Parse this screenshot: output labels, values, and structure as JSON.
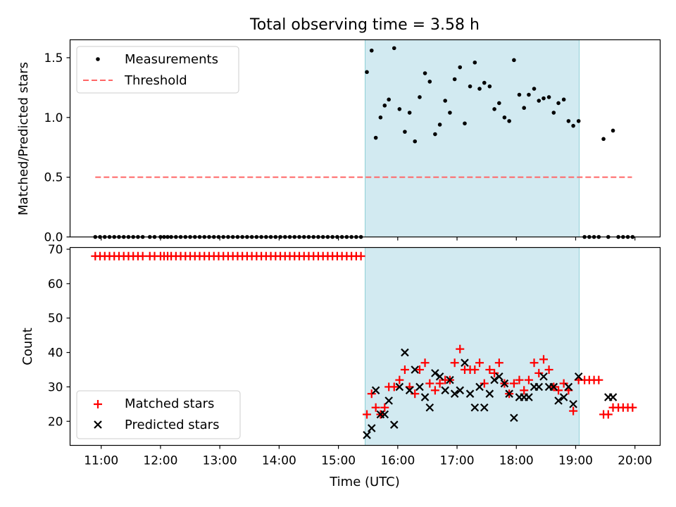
{
  "chart_data": {
    "type": "scatter",
    "title": "Total observing time = 3.58 h",
    "xlabel": "Time (UTC)",
    "xlim": [
      10.475,
      20.425
    ],
    "xticks": [
      "11:00",
      "12:00",
      "13:00",
      "14:00",
      "15:00",
      "16:00",
      "17:00",
      "18:00",
      "19:00",
      "20:00"
    ],
    "shaded_region": {
      "x0": 15.45,
      "x1": 19.06,
      "color": "#add8e6"
    },
    "top": {
      "ylabel": "Matched/Predicted stars",
      "ylim": [
        0,
        1.65
      ],
      "yticks": [
        "0.0",
        "0.5",
        "1.0",
        "1.5"
      ],
      "legend": {
        "position": "upper-left",
        "entries": [
          "Measurements",
          "Threshold"
        ]
      },
      "threshold": {
        "name": "Threshold",
        "y": 0.5,
        "x": [
          10.9,
          19.95
        ],
        "color": "#ff6666"
      },
      "measurements": {
        "name": "Measurements",
        "color": "#000000",
        "points": [
          [
            10.9,
            0
          ],
          [
            10.98,
            0
          ],
          [
            11.06,
            0
          ],
          [
            11.14,
            0
          ],
          [
            11.22,
            0
          ],
          [
            11.3,
            0
          ],
          [
            11.38,
            0
          ],
          [
            11.46,
            0
          ],
          [
            11.54,
            0
          ],
          [
            11.62,
            0
          ],
          [
            11.7,
            0
          ],
          [
            11.82,
            0
          ],
          [
            11.9,
            0
          ],
          [
            12.0,
            0
          ],
          [
            12.06,
            0
          ],
          [
            12.12,
            0
          ],
          [
            12.18,
            0
          ],
          [
            12.26,
            0
          ],
          [
            12.34,
            0
          ],
          [
            12.42,
            0
          ],
          [
            12.5,
            0
          ],
          [
            12.58,
            0
          ],
          [
            12.66,
            0
          ],
          [
            12.74,
            0
          ],
          [
            12.82,
            0
          ],
          [
            12.9,
            0
          ],
          [
            12.98,
            0
          ],
          [
            13.06,
            0
          ],
          [
            13.14,
            0
          ],
          [
            13.22,
            0
          ],
          [
            13.3,
            0
          ],
          [
            13.38,
            0
          ],
          [
            13.46,
            0
          ],
          [
            13.54,
            0
          ],
          [
            13.62,
            0
          ],
          [
            13.7,
            0
          ],
          [
            13.78,
            0
          ],
          [
            13.86,
            0
          ],
          [
            13.94,
            0
          ],
          [
            14.02,
            0
          ],
          [
            14.1,
            0
          ],
          [
            14.18,
            0
          ],
          [
            14.26,
            0
          ],
          [
            14.34,
            0
          ],
          [
            14.42,
            0
          ],
          [
            14.5,
            0
          ],
          [
            14.58,
            0
          ],
          [
            14.66,
            0
          ],
          [
            14.74,
            0
          ],
          [
            14.82,
            0
          ],
          [
            14.9,
            0
          ],
          [
            14.98,
            0
          ],
          [
            15.06,
            0
          ],
          [
            15.14,
            0
          ],
          [
            15.22,
            0
          ],
          [
            15.3,
            0
          ],
          [
            15.38,
            0
          ],
          [
            15.48,
            1.38
          ],
          [
            15.56,
            1.56
          ],
          [
            15.63,
            0.83
          ],
          [
            15.71,
            1.0
          ],
          [
            15.78,
            1.1
          ],
          [
            15.85,
            1.15
          ],
          [
            15.94,
            1.58
          ],
          [
            16.03,
            1.07
          ],
          [
            16.12,
            0.88
          ],
          [
            16.2,
            1.04
          ],
          [
            16.29,
            0.8
          ],
          [
            16.37,
            1.17
          ],
          [
            16.46,
            1.37
          ],
          [
            16.54,
            1.3
          ],
          [
            16.63,
            0.86
          ],
          [
            16.71,
            0.94
          ],
          [
            16.8,
            1.14
          ],
          [
            16.88,
            1.04
          ],
          [
            16.96,
            1.32
          ],
          [
            17.05,
            1.42
          ],
          [
            17.13,
            0.95
          ],
          [
            17.22,
            1.26
          ],
          [
            17.3,
            1.46
          ],
          [
            17.38,
            1.24
          ],
          [
            17.46,
            1.29
          ],
          [
            17.55,
            1.26
          ],
          [
            17.63,
            1.07
          ],
          [
            17.71,
            1.12
          ],
          [
            17.8,
            1.0
          ],
          [
            17.88,
            0.97
          ],
          [
            17.96,
            1.48
          ],
          [
            18.05,
            1.19
          ],
          [
            18.13,
            1.08
          ],
          [
            18.21,
            1.19
          ],
          [
            18.3,
            1.24
          ],
          [
            18.38,
            1.14
          ],
          [
            18.46,
            1.16
          ],
          [
            18.55,
            1.17
          ],
          [
            18.63,
            1.04
          ],
          [
            18.71,
            1.12
          ],
          [
            18.8,
            1.15
          ],
          [
            18.88,
            0.97
          ],
          [
            18.96,
            0.93
          ],
          [
            19.05,
            0.97
          ],
          [
            19.15,
            0
          ],
          [
            19.23,
            0
          ],
          [
            19.31,
            0
          ],
          [
            19.39,
            0
          ],
          [
            19.47,
            0.82
          ],
          [
            19.55,
            0
          ],
          [
            19.63,
            0.89
          ],
          [
            19.72,
            0
          ],
          [
            19.8,
            0
          ],
          [
            19.88,
            0
          ],
          [
            19.96,
            0
          ]
        ]
      }
    },
    "bottom": {
      "ylabel": "Count",
      "ylim": [
        13,
        70.5
      ],
      "yticks": [
        "20",
        "30",
        "40",
        "50",
        "60",
        "70"
      ],
      "legend": {
        "position": "lower-left",
        "entries": [
          "Matched stars",
          "Predicted stars"
        ]
      },
      "series": [
        {
          "name": "Matched stars",
          "marker": "plus",
          "color": "#ff0000",
          "points": [
            [
              10.9,
              68
            ],
            [
              10.98,
              68
            ],
            [
              11.06,
              68
            ],
            [
              11.14,
              68
            ],
            [
              11.22,
              68
            ],
            [
              11.3,
              68
            ],
            [
              11.38,
              68
            ],
            [
              11.46,
              68
            ],
            [
              11.54,
              68
            ],
            [
              11.62,
              68
            ],
            [
              11.7,
              68
            ],
            [
              11.82,
              68
            ],
            [
              11.9,
              68
            ],
            [
              12.0,
              68
            ],
            [
              12.06,
              68
            ],
            [
              12.12,
              68
            ],
            [
              12.18,
              68
            ],
            [
              12.26,
              68
            ],
            [
              12.34,
              68
            ],
            [
              12.42,
              68
            ],
            [
              12.5,
              68
            ],
            [
              12.58,
              68
            ],
            [
              12.66,
              68
            ],
            [
              12.74,
              68
            ],
            [
              12.82,
              68
            ],
            [
              12.9,
              68
            ],
            [
              12.98,
              68
            ],
            [
              13.06,
              68
            ],
            [
              13.14,
              68
            ],
            [
              13.22,
              68
            ],
            [
              13.3,
              68
            ],
            [
              13.38,
              68
            ],
            [
              13.46,
              68
            ],
            [
              13.54,
              68
            ],
            [
              13.62,
              68
            ],
            [
              13.7,
              68
            ],
            [
              13.78,
              68
            ],
            [
              13.86,
              68
            ],
            [
              13.94,
              68
            ],
            [
              14.02,
              68
            ],
            [
              14.1,
              68
            ],
            [
              14.18,
              68
            ],
            [
              14.26,
              68
            ],
            [
              14.34,
              68
            ],
            [
              14.42,
              68
            ],
            [
              14.5,
              68
            ],
            [
              14.58,
              68
            ],
            [
              14.66,
              68
            ],
            [
              14.74,
              68
            ],
            [
              14.82,
              68
            ],
            [
              14.9,
              68
            ],
            [
              14.98,
              68
            ],
            [
              15.06,
              68
            ],
            [
              15.14,
              68
            ],
            [
              15.22,
              68
            ],
            [
              15.3,
              68
            ],
            [
              15.38,
              68
            ],
            [
              15.48,
              22
            ],
            [
              15.56,
              28
            ],
            [
              15.63,
              24
            ],
            [
              15.71,
              22
            ],
            [
              15.78,
              24
            ],
            [
              15.85,
              30
            ],
            [
              15.94,
              30
            ],
            [
              16.03,
              32
            ],
            [
              16.12,
              35
            ],
            [
              16.2,
              30
            ],
            [
              16.29,
              28
            ],
            [
              16.37,
              35
            ],
            [
              16.46,
              37
            ],
            [
              16.54,
              31
            ],
            [
              16.63,
              29
            ],
            [
              16.71,
              31
            ],
            [
              16.8,
              32
            ],
            [
              16.88,
              32
            ],
            [
              16.96,
              37
            ],
            [
              17.05,
              41
            ],
            [
              17.13,
              35
            ],
            [
              17.22,
              35
            ],
            [
              17.3,
              35
            ],
            [
              17.38,
              37
            ],
            [
              17.46,
              31
            ],
            [
              17.55,
              35
            ],
            [
              17.63,
              34
            ],
            [
              17.71,
              37
            ],
            [
              17.8,
              31
            ],
            [
              17.88,
              28
            ],
            [
              17.96,
              31
            ],
            [
              18.05,
              32
            ],
            [
              18.13,
              29
            ],
            [
              18.21,
              32
            ],
            [
              18.3,
              37
            ],
            [
              18.38,
              34
            ],
            [
              18.46,
              38
            ],
            [
              18.55,
              35
            ],
            [
              18.63,
              30
            ],
            [
              18.71,
              29
            ],
            [
              18.8,
              31
            ],
            [
              18.88,
              29
            ],
            [
              18.96,
              23
            ],
            [
              19.05,
              32
            ],
            [
              19.15,
              32
            ],
            [
              19.23,
              32
            ],
            [
              19.31,
              32
            ],
            [
              19.39,
              32
            ],
            [
              19.47,
              22
            ],
            [
              19.55,
              22
            ],
            [
              19.63,
              24
            ],
            [
              19.72,
              24
            ],
            [
              19.8,
              24
            ],
            [
              19.88,
              24
            ],
            [
              19.96,
              24
            ]
          ]
        },
        {
          "name": "Predicted stars",
          "marker": "x",
          "color": "#000000",
          "points": [
            [
              15.48,
              16
            ],
            [
              15.56,
              18
            ],
            [
              15.63,
              29
            ],
            [
              15.71,
              22
            ],
            [
              15.78,
              22
            ],
            [
              15.85,
              26
            ],
            [
              15.94,
              19
            ],
            [
              16.03,
              30
            ],
            [
              16.12,
              40
            ],
            [
              16.2,
              29
            ],
            [
              16.29,
              35
            ],
            [
              16.37,
              30
            ],
            [
              16.46,
              27
            ],
            [
              16.54,
              24
            ],
            [
              16.63,
              34
            ],
            [
              16.71,
              33
            ],
            [
              16.8,
              29
            ],
            [
              16.88,
              32
            ],
            [
              16.96,
              28
            ],
            [
              17.05,
              29
            ],
            [
              17.13,
              37
            ],
            [
              17.22,
              28
            ],
            [
              17.3,
              24
            ],
            [
              17.38,
              30
            ],
            [
              17.46,
              24
            ],
            [
              17.55,
              28
            ],
            [
              17.63,
              32
            ],
            [
              17.71,
              33
            ],
            [
              17.8,
              31
            ],
            [
              17.88,
              28
            ],
            [
              17.96,
              21
            ],
            [
              18.05,
              27
            ],
            [
              18.13,
              27
            ],
            [
              18.21,
              27
            ],
            [
              18.3,
              30
            ],
            [
              18.38,
              30
            ],
            [
              18.46,
              33
            ],
            [
              18.55,
              30
            ],
            [
              18.63,
              30
            ],
            [
              18.71,
              26
            ],
            [
              18.8,
              27
            ],
            [
              18.88,
              30
            ],
            [
              18.96,
              25
            ],
            [
              19.05,
              33
            ],
            [
              19.55,
              27
            ],
            [
              19.63,
              27
            ]
          ]
        }
      ]
    }
  }
}
